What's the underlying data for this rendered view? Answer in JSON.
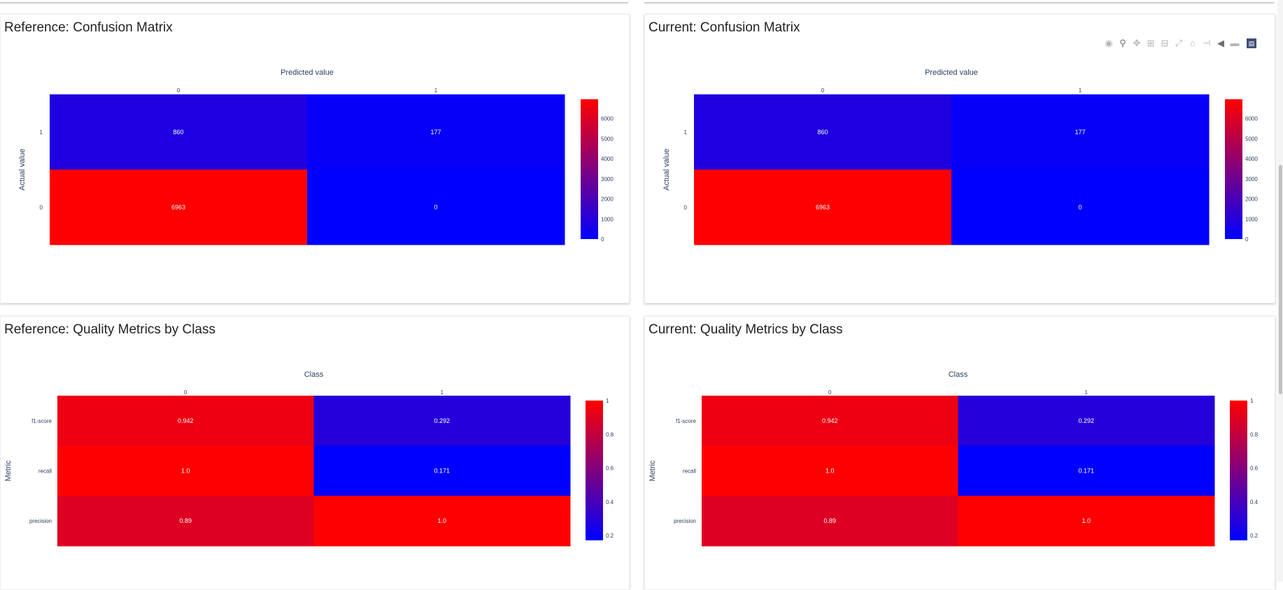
{
  "panels": [
    {
      "title": "Reference: Confusion Matrix",
      "chart": "cm",
      "show_modebar": false
    },
    {
      "title": "Current: Confusion Matrix",
      "chart": "cm",
      "show_modebar": true
    },
    {
      "title": "Reference: Quality Metrics by Class",
      "chart": "qm",
      "show_modebar": false
    },
    {
      "title": "Current: Quality Metrics by Class",
      "chart": "qm",
      "show_modebar": false
    }
  ],
  "modebar": {
    "icons": [
      "camera-icon",
      "zoom-icon",
      "pan-icon",
      "zoom-in-icon",
      "zoom-out-icon",
      "autoscale-icon",
      "reset-axes-icon",
      "spike-lines-icon",
      "hover-closest-icon",
      "hover-compare-icon",
      "plotly-logo-icon"
    ]
  },
  "colors": {
    "low": "#0000ff",
    "high": "#ff0000",
    "text": "#2a3f5f"
  },
  "chart_data": [
    {
      "type": "heatmap",
      "title": "Reference: Confusion Matrix",
      "xlabel": "Predicted value",
      "ylabel": "Actual value",
      "x": [
        "0",
        "1"
      ],
      "y": [
        "1",
        "0"
      ],
      "z": [
        [
          860,
          177
        ],
        [
          6963,
          0
        ]
      ],
      "text": [
        [
          "860",
          "177"
        ],
        [
          "6963",
          "0"
        ]
      ],
      "zmin": 0,
      "zmax": 6963,
      "colorbar_ticks": [
        "0",
        "1000",
        "2000",
        "3000",
        "4000",
        "5000",
        "6000"
      ],
      "colorbar_values": [
        0,
        1000,
        2000,
        3000,
        4000,
        5000,
        6000
      ],
      "colorscale": [
        "#0000ff",
        "#ff0000"
      ]
    },
    {
      "type": "heatmap",
      "title": "Current: Confusion Matrix",
      "xlabel": "Predicted value",
      "ylabel": "Actual value",
      "x": [
        "0",
        "1"
      ],
      "y": [
        "1",
        "0"
      ],
      "z": [
        [
          860,
          177
        ],
        [
          6963,
          0
        ]
      ],
      "text": [
        [
          "860",
          "177"
        ],
        [
          "6963",
          "0"
        ]
      ],
      "zmin": 0,
      "zmax": 6963,
      "colorbar_ticks": [
        "0",
        "1000",
        "2000",
        "3000",
        "4000",
        "5000",
        "6000"
      ],
      "colorbar_values": [
        0,
        1000,
        2000,
        3000,
        4000,
        5000,
        6000
      ],
      "colorscale": [
        "#0000ff",
        "#ff0000"
      ]
    },
    {
      "type": "heatmap",
      "title": "Reference: Quality Metrics by Class",
      "xlabel": "Class",
      "ylabel": "Metric",
      "x": [
        "0",
        "1"
      ],
      "y": [
        "f1-score",
        "recall",
        "precision"
      ],
      "z": [
        [
          0.942,
          0.292
        ],
        [
          1.0,
          0.171
        ],
        [
          0.89,
          1.0
        ]
      ],
      "text": [
        [
          "0.942",
          "0.292"
        ],
        [
          "1.0",
          "0.171"
        ],
        [
          "0.89",
          "1.0"
        ]
      ],
      "zmin": 0.171,
      "zmax": 1.0,
      "colorbar_ticks": [
        "0.2",
        "0.4",
        "0.6",
        "0.8",
        "1"
      ],
      "colorbar_values": [
        0.2,
        0.4,
        0.6,
        0.8,
        1.0
      ],
      "colorscale": [
        "#0000ff",
        "#ff0000"
      ]
    },
    {
      "type": "heatmap",
      "title": "Current: Quality Metrics by Class",
      "xlabel": "Class",
      "ylabel": "Metric",
      "x": [
        "0",
        "1"
      ],
      "y": [
        "f1-score",
        "recall",
        "precision"
      ],
      "z": [
        [
          0.942,
          0.292
        ],
        [
          1.0,
          0.171
        ],
        [
          0.89,
          1.0
        ]
      ],
      "text": [
        [
          "0.942",
          "0.292"
        ],
        [
          "1.0",
          "0.171"
        ],
        [
          "0.89",
          "1.0"
        ]
      ],
      "zmin": 0.171,
      "zmax": 1.0,
      "colorbar_ticks": [
        "0.2",
        "0.4",
        "0.6",
        "0.8",
        "1"
      ],
      "colorbar_values": [
        0.2,
        0.4,
        0.6,
        0.8,
        1.0
      ],
      "colorscale": [
        "#0000ff",
        "#ff0000"
      ]
    }
  ]
}
